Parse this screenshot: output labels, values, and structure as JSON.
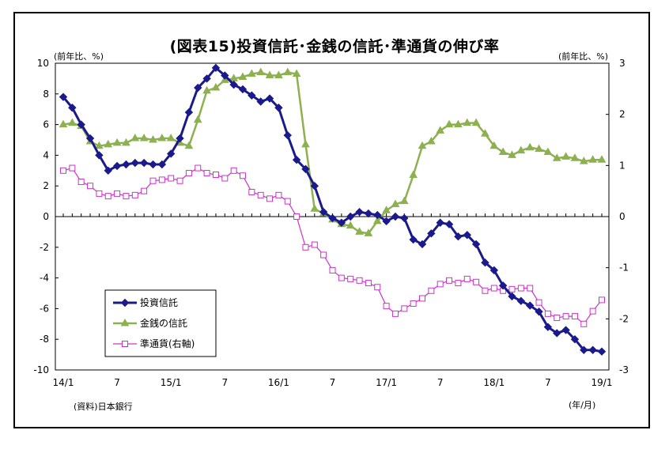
{
  "title": "(図表15)投資信託･金銭の信託･準通貨の伸び率",
  "left_unit": "(前年比、%)",
  "right_unit": "(前年比、%)",
  "source": "(資料)日本銀行",
  "x_unit": "(年/月)",
  "chart_data": {
    "type": "line",
    "title": "(図表15)投資信託･金銭の信託･準通貨の伸び率",
    "x_tick_labels": [
      "14/1",
      "7",
      "15/1",
      "7",
      "16/1",
      "7",
      "17/1",
      "7",
      "18/1",
      "7",
      "19/1"
    ],
    "y_left": {
      "label": "(前年比、%)",
      "range": [
        -10,
        10
      ],
      "ticks": [
        "10",
        "8",
        "6",
        "4",
        "2",
        "0",
        "-2",
        "-4",
        "-6",
        "-8",
        "-10"
      ]
    },
    "y_right": {
      "label": "(前年比、%)",
      "range": [
        -3,
        3
      ],
      "ticks": [
        "3",
        "2",
        "1",
        "0",
        "-1",
        "-2",
        "-3"
      ]
    },
    "grid": false,
    "legend_position": "bottom-left",
    "series": [
      {
        "name": "投資信託",
        "axis": "left",
        "color": "#1a1a8c",
        "marker": "diamond-filled",
        "values": [
          7.8,
          7.1,
          6.0,
          5.1,
          4.0,
          3.0,
          3.3,
          3.4,
          3.5,
          3.5,
          3.4,
          3.4,
          4.1,
          5.1,
          6.8,
          8.4,
          9.0,
          9.7,
          9.2,
          8.6,
          8.3,
          7.9,
          7.5,
          7.7,
          7.1,
          5.3,
          3.7,
          3.1,
          2.0,
          0.3,
          -0.1,
          -0.4,
          0.0,
          0.3,
          0.2,
          0.1,
          -0.3,
          0.0,
          -0.1,
          -1.5,
          -1.8,
          -1.1,
          -0.4,
          -0.5,
          -1.3,
          -1.2,
          -1.8,
          -3.0,
          -3.5,
          -4.5,
          -5.2,
          -5.5,
          -5.8,
          -6.2,
          -7.2,
          -7.6,
          -7.4,
          -8.0,
          -8.7,
          -8.7,
          -8.8
        ]
      },
      {
        "name": "金銭の信託",
        "axis": "left",
        "color": "#8db050",
        "marker": "triangle-filled",
        "values": [
          6.0,
          6.1,
          5.9,
          4.9,
          4.6,
          4.7,
          4.8,
          4.8,
          5.1,
          5.1,
          5.0,
          5.1,
          5.1,
          4.8,
          4.6,
          6.3,
          8.2,
          8.4,
          8.9,
          9.0,
          9.1,
          9.3,
          9.4,
          9.2,
          9.2,
          9.4,
          9.3,
          4.7,
          0.5,
          0.2,
          -0.2,
          -0.5,
          -0.6,
          -1.0,
          -1.1,
          -0.3,
          0.4,
          0.8,
          1.0,
          2.7,
          4.6,
          4.9,
          5.6,
          6.0,
          6.0,
          6.1,
          6.1,
          5.4,
          4.6,
          4.2,
          4.0,
          4.3,
          4.5,
          4.4,
          4.2,
          3.8,
          3.9,
          3.8,
          3.6,
          3.7,
          3.7
        ]
      },
      {
        "name": "準通貨(右軸)",
        "axis": "right",
        "color": "#cc33cc",
        "marker": "square-open",
        "values": [
          0.9,
          0.95,
          0.68,
          0.6,
          0.45,
          0.4,
          0.45,
          0.4,
          0.42,
          0.5,
          0.7,
          0.72,
          0.75,
          0.7,
          0.85,
          0.95,
          0.85,
          0.82,
          0.75,
          0.9,
          0.8,
          0.48,
          0.42,
          0.35,
          0.42,
          0.3,
          0.0,
          -0.6,
          -0.55,
          -0.75,
          -1.05,
          -1.2,
          -1.22,
          -1.25,
          -1.3,
          -1.38,
          -1.75,
          -1.9,
          -1.8,
          -1.7,
          -1.6,
          -1.45,
          -1.32,
          -1.25,
          -1.3,
          -1.22,
          -1.28,
          -1.45,
          -1.4,
          -1.45,
          -1.42,
          -1.4,
          -1.4,
          -1.68,
          -1.9,
          -1.98,
          -1.95,
          -1.95,
          -2.1,
          -1.85,
          -1.63
        ]
      }
    ]
  }
}
